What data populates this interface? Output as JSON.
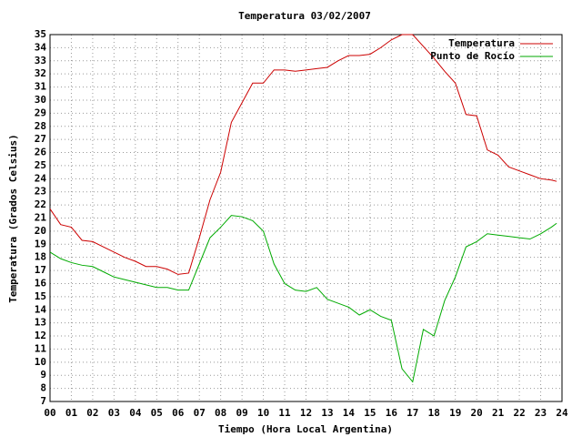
{
  "chart_data": {
    "type": "line",
    "title": "Temperatura 03/02/2007",
    "xlabel": "Tiempo (Hora Local Argentina)",
    "ylabel": "Temperatura (Grados Celsius)",
    "x": [
      0,
      0.5,
      1,
      1.5,
      2,
      2.5,
      3,
      3.5,
      4,
      4.5,
      5,
      5.5,
      6,
      6.5,
      7,
      7.5,
      8,
      8.5,
      9,
      9.5,
      10,
      10.5,
      11,
      11.5,
      12,
      12.5,
      13,
      13.5,
      14,
      14.5,
      15,
      15.5,
      16,
      16.5,
      17,
      17.5,
      18,
      18.5,
      19,
      19.5,
      20,
      20.5,
      21,
      21.5,
      22,
      22.5,
      23,
      23.5,
      23.75
    ],
    "series": [
      {
        "name": "Temperatura",
        "color": "#cc0000",
        "values": [
          21.7,
          20.5,
          20.3,
          19.3,
          19.2,
          18.8,
          18.4,
          18.0,
          17.7,
          17.3,
          17.3,
          17.1,
          16.7,
          16.8,
          19.5,
          22.4,
          24.5,
          28.3,
          29.8,
          31.3,
          31.3,
          32.3,
          32.3,
          32.2,
          32.3,
          32.4,
          32.5,
          33.0,
          33.4,
          33.4,
          33.5,
          34.0,
          34.6,
          35.0,
          35.0,
          34.1,
          33.2,
          32.2,
          31.3,
          28.9,
          28.8,
          26.2,
          25.8,
          24.9,
          24.6,
          24.3,
          24.0,
          23.9,
          23.8
        ]
      },
      {
        "name": "Punto de Rocío",
        "color": "#00aa00",
        "values": [
          18.4,
          17.9,
          17.6,
          17.4,
          17.3,
          16.9,
          16.5,
          16.3,
          16.1,
          15.9,
          15.7,
          15.7,
          15.5,
          15.5,
          17.5,
          19.5,
          20.3,
          21.2,
          21.1,
          20.8,
          20.0,
          17.5,
          16.0,
          15.5,
          15.4,
          15.7,
          14.8,
          14.5,
          14.2,
          13.6,
          14.0,
          13.5,
          13.2,
          9.5,
          8.5,
          12.5,
          12.0,
          14.7,
          16.5,
          18.8,
          19.2,
          19.8,
          19.7,
          19.6,
          19.5,
          19.4,
          19.8,
          20.3,
          20.6
        ]
      }
    ],
    "xlim": [
      0,
      24
    ],
    "xticks": [
      {
        "value": 0,
        "label": "00"
      },
      {
        "value": 1,
        "label": "01"
      },
      {
        "value": 2,
        "label": "02"
      },
      {
        "value": 3,
        "label": "03"
      },
      {
        "value": 4,
        "label": "04"
      },
      {
        "value": 5,
        "label": "05"
      },
      {
        "value": 6,
        "label": "06"
      },
      {
        "value": 7,
        "label": "07"
      },
      {
        "value": 8,
        "label": "08"
      },
      {
        "value": 9,
        "label": "09"
      },
      10,
      11,
      12,
      13,
      14,
      15,
      16,
      17,
      18,
      19,
      20,
      21,
      22,
      23,
      24
    ],
    "ylim": [
      7,
      35
    ],
    "yticks": [
      7,
      8,
      9,
      10,
      11,
      12,
      13,
      14,
      15,
      16,
      17,
      18,
      19,
      20,
      21,
      22,
      23,
      24,
      25,
      26,
      27,
      28,
      29,
      30,
      31,
      32,
      33,
      34,
      35
    ],
    "grid": true,
    "legend": "top-right"
  }
}
